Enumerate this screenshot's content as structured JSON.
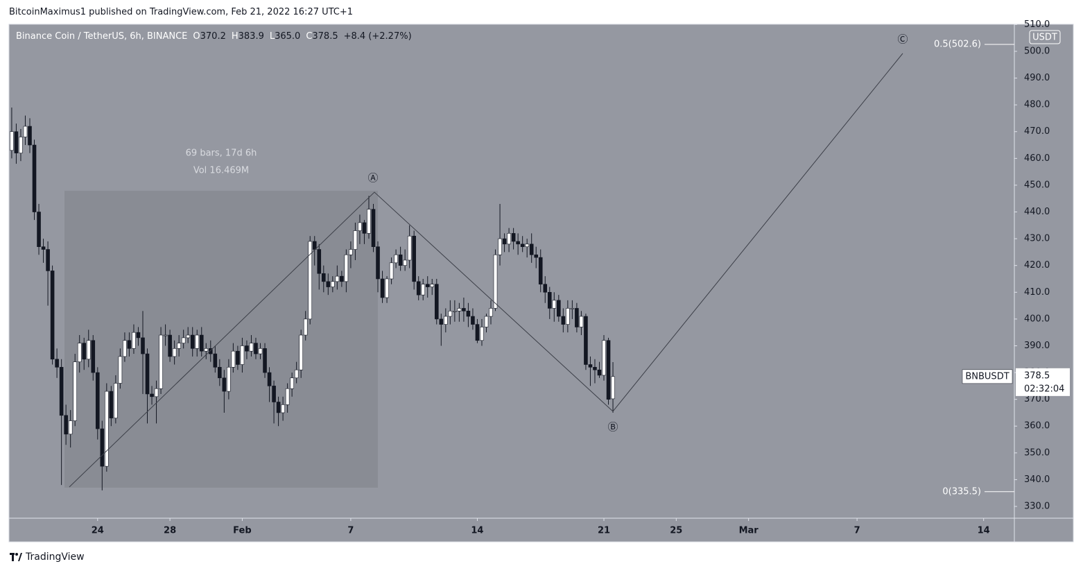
{
  "header": "BitcoinMaximus1 published on TradingView.com, Feb 21, 2022 16:27 UTC+1",
  "footer": "TradingView",
  "chart_data": {
    "type": "candlestick",
    "title": "Binance Coin / TetherUS, 6h, BINANCE",
    "legend": [
      {
        "key": "O",
        "value": "370.2"
      },
      {
        "key": "H",
        "value": "383.9"
      },
      {
        "key": "L",
        "value": "365.0"
      },
      {
        "key": "C",
        "value": "378.5"
      }
    ],
    "change": "+8.4 (+2.27%)",
    "y_unit": "USDT",
    "up_color": "#ffffff",
    "down_color": "#131722",
    "x": [
      19.25,
      19.5,
      19.75,
      20,
      20.25,
      20.5,
      20.75,
      21,
      21.25,
      21.5,
      21.75,
      22,
      22.25,
      22.5,
      22.75,
      23,
      23.25,
      23.5,
      23.75,
      24,
      24.25,
      24.5,
      24.75,
      25,
      25.25,
      25.5,
      25.75,
      26,
      26.25,
      26.5,
      26.75,
      27,
      27.25,
      27.5,
      27.75,
      28,
      28.25,
      28.5,
      28.75,
      29,
      29.25,
      29.5,
      29.75,
      30,
      30.25,
      30.5,
      30.75,
      31,
      31.25,
      31.5,
      31.75,
      32,
      32.25,
      32.5,
      32.75,
      33,
      33.25,
      33.5,
      33.75,
      34,
      34.25,
      34.5,
      34.75,
      35,
      35.25,
      35.5,
      35.75,
      36,
      36.25,
      36.5,
      36.75,
      37,
      37.25,
      37.5,
      37.75,
      38,
      38.25,
      38.5,
      38.75,
      39,
      39.25,
      39.5,
      39.75,
      40,
      40.25,
      40.5,
      40.75,
      41,
      41.25,
      41.5,
      41.75,
      42,
      42.25,
      42.5,
      42.75,
      43,
      43.25,
      43.5,
      43.75,
      44,
      44.25,
      44.5,
      44.75,
      45,
      45.25,
      45.5,
      45.75,
      46,
      46.25,
      46.5,
      46.75,
      47,
      47.25,
      47.5,
      47.75,
      48,
      48.25,
      48.5,
      48.75,
      49,
      49.25,
      49.5,
      49.75,
      50,
      50.25,
      50.5,
      50.75,
      51,
      51.25,
      51.5,
      51.75,
      52,
      52.25,
      52.5
    ],
    "open": [
      463,
      470,
      462,
      468,
      472,
      465,
      440,
      427,
      426,
      418,
      385,
      382,
      364,
      357,
      362,
      384,
      391,
      385,
      392,
      380,
      359,
      345,
      373,
      363,
      376,
      386,
      392,
      389,
      395,
      393,
      387,
      372,
      371,
      374,
      394,
      394,
      386,
      389,
      391,
      393,
      394,
      389,
      394,
      388,
      389,
      387,
      382,
      378,
      373,
      382,
      388,
      383,
      390,
      388,
      391,
      387,
      389,
      380,
      375,
      369,
      365,
      368,
      374,
      378,
      381,
      394,
      400,
      429,
      426,
      417,
      414,
      412,
      414,
      416,
      414,
      424,
      426,
      433,
      436,
      432,
      441,
      427,
      415,
      408,
      415,
      421,
      424,
      420,
      422,
      431,
      414,
      409,
      413,
      412,
      413,
      400,
      398,
      401,
      403,
      403,
      404,
      403,
      401,
      398,
      392,
      397,
      401,
      404,
      424,
      430,
      428,
      432,
      429,
      428,
      427,
      428,
      424,
      423,
      413,
      410,
      404,
      407,
      401,
      398,
      404,
      404,
      397,
      401,
      383,
      382,
      381,
      379,
      392,
      370.2
    ],
    "high": [
      479,
      473,
      471,
      476,
      475,
      467,
      443,
      430,
      429,
      420,
      389,
      385,
      368,
      366,
      387,
      394,
      393,
      396,
      394,
      382,
      362,
      376,
      375,
      379,
      389,
      395,
      395,
      398,
      397,
      403,
      389,
      375,
      377,
      397,
      398,
      396,
      392,
      394,
      396,
      397,
      397,
      396,
      397,
      391,
      392,
      390,
      385,
      381,
      385,
      391,
      390,
      393,
      392,
      394,
      393,
      391,
      391,
      382,
      377,
      371,
      371,
      376,
      380,
      384,
      396,
      403,
      431,
      431,
      428,
      420,
      417,
      416,
      420,
      418,
      426,
      429,
      436,
      439,
      437,
      446,
      443,
      429,
      418,
      416,
      423,
      426,
      427,
      426,
      435,
      433,
      416,
      415,
      416,
      415,
      415,
      402,
      404,
      407,
      407,
      406,
      408,
      406,
      404,
      400,
      400,
      402,
      407,
      426,
      443,
      432,
      434,
      434,
      432,
      431,
      430,
      432,
      427,
      426,
      416,
      412,
      410,
      409,
      404,
      407,
      407,
      406,
      403,
      402,
      386,
      385,
      384,
      394,
      393,
      383.9
    ],
    "low": [
      460,
      458,
      459,
      465,
      462,
      437,
      424,
      421,
      405,
      383,
      378,
      338,
      353,
      352,
      360,
      380,
      381,
      382,
      377,
      355,
      336,
      343,
      360,
      361,
      374,
      384,
      386,
      387,
      390,
      372,
      361,
      368,
      361,
      372,
      390,
      384,
      383,
      386,
      389,
      391,
      386,
      386,
      386,
      385,
      384,
      380,
      375,
      365,
      370,
      380,
      381,
      380,
      385,
      386,
      385,
      385,
      378,
      369,
      361,
      360,
      362,
      365,
      371,
      376,
      378,
      392,
      398,
      420,
      411,
      410,
      409,
      410,
      411,
      412,
      410,
      419,
      422,
      428,
      428,
      430,
      425,
      410,
      406,
      406,
      413,
      419,
      418,
      418,
      419,
      411,
      407,
      407,
      408,
      409,
      398,
      390,
      395,
      398,
      399,
      399,
      399,
      397,
      396,
      391,
      390,
      395,
      398,
      403,
      420,
      425,
      425,
      426,
      424,
      425,
      423,
      421,
      419,
      410,
      406,
      400,
      399,
      399,
      395,
      395,
      400,
      395,
      394,
      381,
      375,
      376,
      378,
      377,
      368,
      365
    ],
    "close": [
      470,
      462,
      468,
      472,
      465,
      440,
      427,
      426,
      418,
      385,
      382,
      364,
      357,
      362,
      384,
      391,
      385,
      392,
      380,
      359,
      345,
      373,
      363,
      376,
      386,
      392,
      389,
      395,
      393,
      387,
      372,
      371,
      374,
      394,
      394,
      386,
      389,
      391,
      393,
      394,
      389,
      394,
      388,
      389,
      387,
      382,
      378,
      373,
      382,
      388,
      383,
      390,
      388,
      391,
      387,
      389,
      380,
      375,
      369,
      365,
      368,
      374,
      378,
      381,
      394,
      400,
      429,
      426,
      417,
      414,
      412,
      414,
      416,
      414,
      424,
      426,
      433,
      436,
      432,
      441,
      427,
      415,
      408,
      415,
      421,
      424,
      420,
      422,
      431,
      414,
      409,
      413,
      412,
      413,
      400,
      398,
      401,
      403,
      403,
      404,
      403,
      401,
      398,
      392,
      397,
      401,
      404,
      424,
      430,
      428,
      432,
      429,
      428,
      427,
      428,
      424,
      423,
      413,
      410,
      404,
      407,
      401,
      398,
      404,
      404,
      397,
      401,
      383,
      382,
      381,
      379,
      392,
      370,
      378.5
    ],
    "xlim": [
      19.1,
      74.7
    ],
    "xticks": [
      {
        "value": 24,
        "label": "24"
      },
      {
        "value": 28,
        "label": "28"
      },
      {
        "value": 32,
        "label": "Feb"
      },
      {
        "value": 38,
        "label": "7"
      },
      {
        "value": 45,
        "label": "14"
      },
      {
        "value": 52,
        "label": "21"
      },
      {
        "value": 56,
        "label": "25"
      },
      {
        "value": 60,
        "label": "Mar"
      },
      {
        "value": 66,
        "label": "7"
      },
      {
        "value": 73,
        "label": "14"
      }
    ],
    "ylim": [
      325.6,
      510.1
    ],
    "yticks": [
      {
        "value": 330,
        "label": "330.0"
      },
      {
        "value": 340,
        "label": "340.0"
      },
      {
        "value": 350,
        "label": "350.0"
      },
      {
        "value": 360,
        "label": "360.0"
      },
      {
        "value": 370,
        "label": "370.0"
      },
      {
        "value": 380,
        "label": "380.0"
      },
      {
        "value": 390,
        "label": "390.0"
      },
      {
        "value": 400,
        "label": "400.0"
      },
      {
        "value": 410,
        "label": "410.0"
      },
      {
        "value": 420,
        "label": "420.0"
      },
      {
        "value": 430,
        "label": "430.0"
      },
      {
        "value": 440,
        "label": "440.0"
      },
      {
        "value": 450,
        "label": "450.0"
      },
      {
        "value": 460,
        "label": "460.0"
      },
      {
        "value": 470,
        "label": "470.0"
      },
      {
        "value": 480,
        "label": "480.0"
      },
      {
        "value": 490,
        "label": "490.0"
      },
      {
        "value": 500,
        "label": "500.0"
      },
      {
        "value": 510,
        "label": "510.0"
      }
    ],
    "fib_levels": [
      {
        "value": 502.6,
        "label": "0.5(502.6)"
      },
      {
        "value": 335.5,
        "label": "0(335.5)"
      }
    ],
    "wave_labels": [
      "Ⓐ",
      "Ⓑ",
      "Ⓒ"
    ],
    "measure": [
      "69 bars, 17d 6h",
      "Vol 16.469M"
    ],
    "last_price": {
      "symbol": "BNBUSDT",
      "value": 378.5,
      "countdown": "02:32:04"
    }
  }
}
